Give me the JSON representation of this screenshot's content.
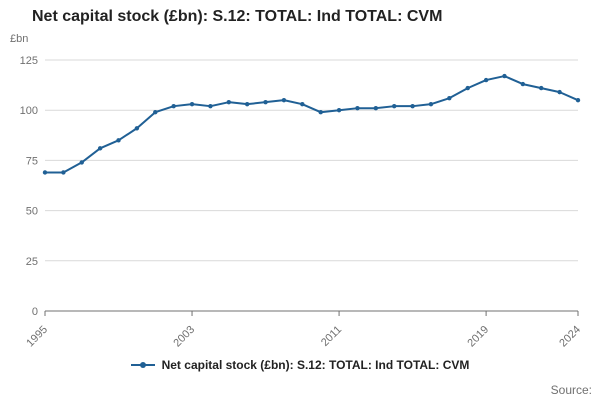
{
  "title": "Net capital stock (£bn): S.12: TOTAL: Ind TOTAL: CVM",
  "y_unit_label": "£bn",
  "legend": {
    "label": "Net capital stock (£bn): S.12: TOTAL: Ind TOTAL: CVM"
  },
  "source_label": "Source:",
  "colors": {
    "line": "#206095",
    "grid": "#d9d9d9",
    "axis": "#707070",
    "text": "#222222"
  },
  "chart_data": {
    "type": "line",
    "title": "Net capital stock (£bn): S.12: TOTAL: Ind TOTAL: CVM",
    "xlabel": "",
    "ylabel": "£bn",
    "ylim": [
      0,
      125
    ],
    "yticks": [
      0,
      25,
      50,
      75,
      100,
      125
    ],
    "xticks": [
      1995,
      2003,
      2011,
      2019,
      2024
    ],
    "grid": true,
    "legend_position": "bottom",
    "x": [
      1995,
      1996,
      1997,
      1998,
      1999,
      2000,
      2001,
      2002,
      2003,
      2004,
      2005,
      2006,
      2007,
      2008,
      2009,
      2010,
      2011,
      2012,
      2013,
      2014,
      2015,
      2016,
      2017,
      2018,
      2019,
      2020,
      2021,
      2022,
      2023,
      2024
    ],
    "series": [
      {
        "name": "Net capital stock (£bn): S.12: TOTAL: Ind TOTAL: CVM",
        "values": [
          69,
          69,
          74,
          81,
          85,
          91,
          99,
          102,
          103,
          102,
          104,
          103,
          104,
          105,
          103,
          99,
          100,
          101,
          101,
          102,
          102,
          103,
          106,
          111,
          115,
          117,
          113,
          111,
          109,
          105
        ]
      }
    ],
    "line_color": "#206095"
  }
}
